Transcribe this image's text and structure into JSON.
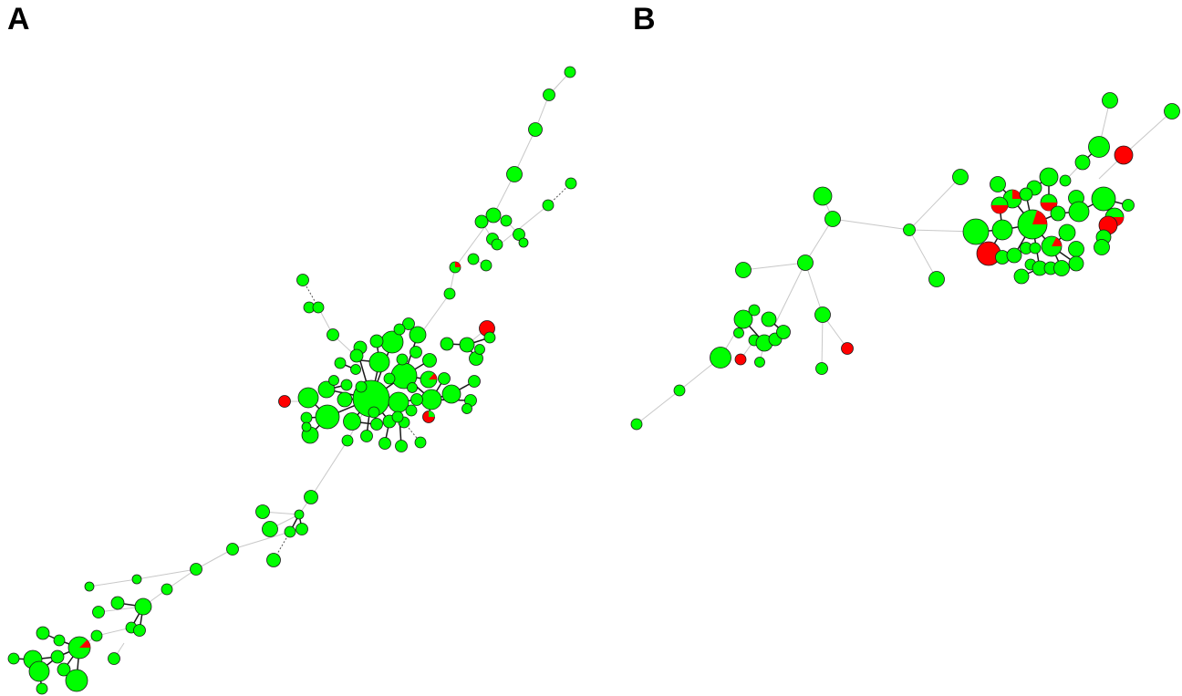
{
  "panels": {
    "a": {
      "label": "A"
    },
    "b": {
      "label": "B"
    }
  },
  "colors": {
    "group_1": "#00ff00",
    "group_2": "#ff0000",
    "node_outline": "#1a1a1a",
    "edge_light": "#c8c8c8",
    "edge_dark": "#1a1a1a"
  },
  "legend": null
}
